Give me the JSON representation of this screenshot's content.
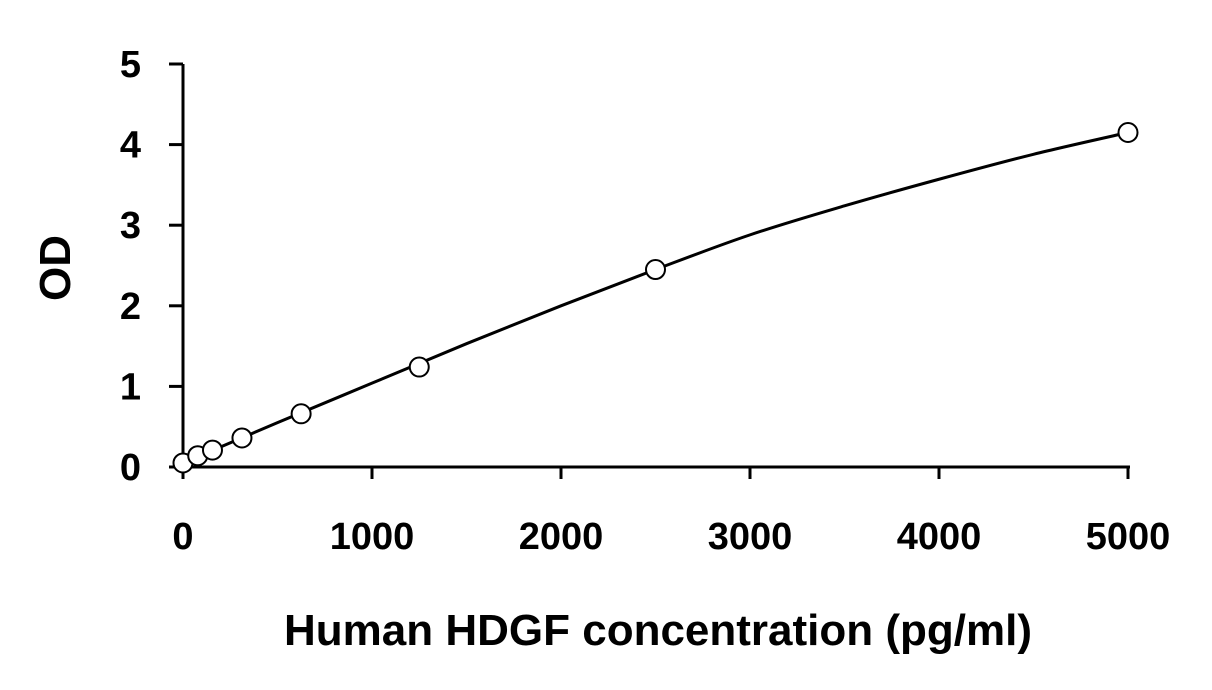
{
  "chart_data": {
    "type": "scatter",
    "title": "",
    "xlabel": "Human HDGF concentration (pg/ml)",
    "ylabel": "OD",
    "xlim": [
      0,
      5000
    ],
    "ylim": [
      0,
      5
    ],
    "x_ticks": [
      "0",
      "1000",
      "2000",
      "3000",
      "4000",
      "5000"
    ],
    "y_ticks": [
      "0",
      "1",
      "2",
      "3",
      "4",
      "5"
    ],
    "grid": false,
    "legend": "none",
    "points": {
      "x": [
        0,
        78,
        156,
        312,
        625,
        1250,
        2500,
        5000
      ],
      "y": [
        0.05,
        0.14,
        0.21,
        0.36,
        0.66,
        1.24,
        2.45,
        4.15
      ]
    },
    "fit_curve": {
      "x": [
        0,
        500,
        1000,
        1500,
        2000,
        2500,
        3000,
        3500,
        4000,
        4500,
        5000
      ],
      "y": [
        0.05,
        0.55,
        1.04,
        1.53,
        2.0,
        2.45,
        2.88,
        3.24,
        3.57,
        3.88,
        4.15
      ]
    },
    "colors": {
      "marker_stroke": "#000000",
      "line": "#000000",
      "axis": "#000000"
    }
  }
}
